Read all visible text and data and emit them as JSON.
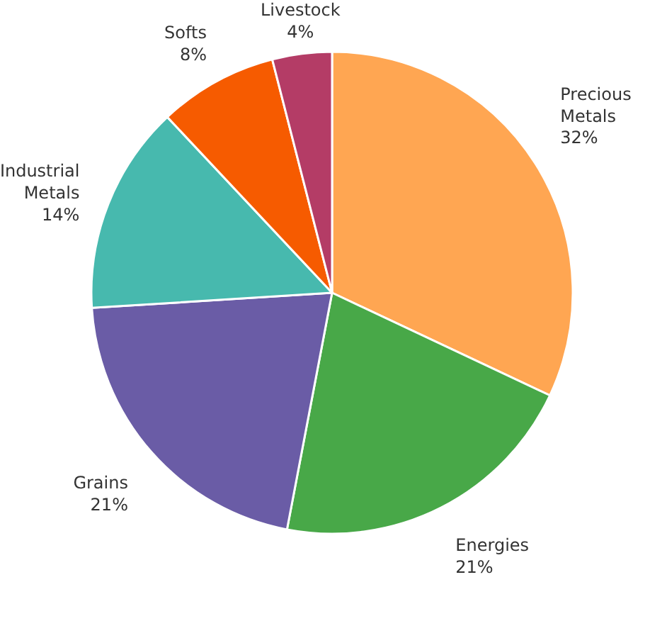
{
  "chart_data": {
    "type": "pie",
    "categories": [
      "Precious Metals",
      "Energies",
      "Grains",
      "Industrial Metals",
      "Softs",
      "Livestock"
    ],
    "values": [
      32,
      21,
      21,
      14,
      8,
      4
    ],
    "colors": [
      "#ffa652",
      "#48a848",
      "#6a5ca6",
      "#47b9ae",
      "#f65b00",
      "#b43c66"
    ],
    "value_labels": [
      "32%",
      "21%",
      "21%",
      "14%",
      "8%",
      "4%"
    ],
    "legend": false
  }
}
